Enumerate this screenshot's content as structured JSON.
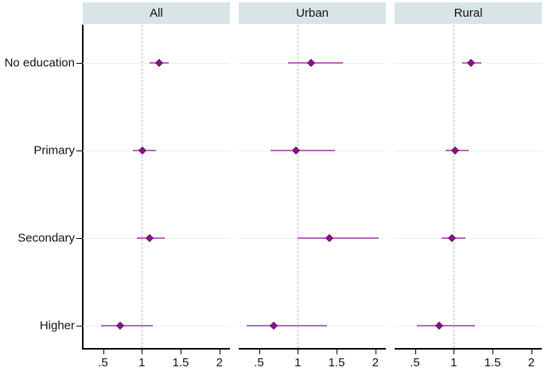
{
  "figure": {
    "panel_headers": [
      "All",
      "Urban",
      "Rural"
    ],
    "y_axis_labels": [
      "No education",
      "Primary",
      "Secondary",
      "Higher"
    ],
    "x_axis_tick_labels": [
      ".5",
      "1",
      "1.5",
      "2"
    ]
  },
  "chart_data": {
    "type": "scatter",
    "subtype": "forest-plot",
    "title": "",
    "xlabel": "",
    "ylabel": "",
    "panels": [
      "All",
      "Urban",
      "Rural"
    ],
    "categories": [
      "No education",
      "Primary",
      "Secondary",
      "Higher"
    ],
    "xtick_labels": [
      ".5",
      "1",
      "1.5",
      "2"
    ],
    "xtick_values": [
      0.5,
      1,
      1.5,
      2
    ],
    "xlim": [
      0.24,
      2.14
    ],
    "refline": 1,
    "grid": "horizontal-light",
    "legend_position": "none",
    "series": [
      {
        "name": "All",
        "points": [
          {
            "category": "No education",
            "estimate": 1.22,
            "ci_low": 1.1,
            "ci_high": 1.35
          },
          {
            "category": "Primary",
            "estimate": 1.01,
            "ci_low": 0.88,
            "ci_high": 1.18
          },
          {
            "category": "Secondary",
            "estimate": 1.1,
            "ci_low": 0.94,
            "ci_high": 1.3
          },
          {
            "category": "Higher",
            "estimate": 0.72,
            "ci_low": 0.47,
            "ci_high": 1.14
          }
        ]
      },
      {
        "name": "Urban",
        "points": [
          {
            "category": "No education",
            "estimate": 1.17,
            "ci_low": 0.87,
            "ci_high": 1.58
          },
          {
            "category": "Primary",
            "estimate": 0.98,
            "ci_low": 0.65,
            "ci_high": 1.48
          },
          {
            "category": "Secondary",
            "estimate": 1.41,
            "ci_low": 1.0,
            "ci_high": 2.04
          },
          {
            "category": "Higher",
            "estimate": 0.69,
            "ci_low": 0.34,
            "ci_high": 1.38
          }
        ]
      },
      {
        "name": "Rural",
        "points": [
          {
            "category": "No education",
            "estimate": 1.22,
            "ci_low": 1.11,
            "ci_high": 1.36
          },
          {
            "category": "Primary",
            "estimate": 1.02,
            "ci_low": 0.89,
            "ci_high": 1.19
          },
          {
            "category": "Secondary",
            "estimate": 0.98,
            "ci_low": 0.84,
            "ci_high": 1.15
          },
          {
            "category": "Higher",
            "estimate": 0.81,
            "ci_low": 0.53,
            "ci_high": 1.27
          }
        ]
      }
    ],
    "colors": {
      "marker": "#8b128b",
      "marker_border": "#6d086d",
      "ci_line": "#b964b9",
      "header_bg": "#d9e4e9",
      "gridline": "#e9f1f1",
      "refline": "#bdbdbd",
      "axis": "#000000",
      "background": "#ffffff"
    }
  }
}
